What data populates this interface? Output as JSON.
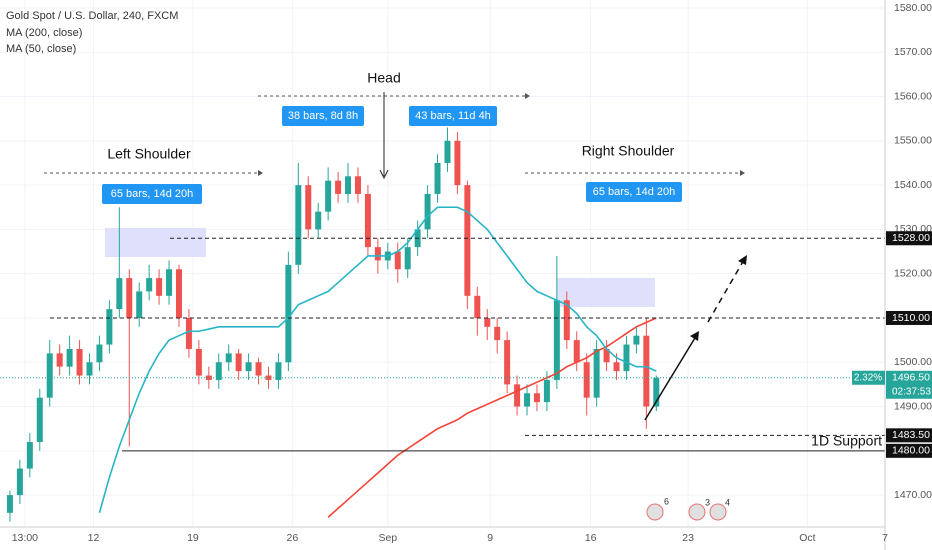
{
  "chart_data": {
    "type": "candlestick",
    "title": "Gold Spot / U.S. Dollar, 240, FXCM",
    "up_color": "#26a69a",
    "down_color": "#ef5350",
    "x": [
      0,
      1,
      2,
      3,
      4,
      5,
      6,
      7,
      8,
      9,
      10,
      11,
      12,
      13,
      14,
      15,
      16,
      17,
      18,
      19,
      20,
      21,
      22,
      23,
      24,
      25,
      26,
      27,
      28,
      29,
      30,
      31,
      32,
      33,
      34,
      35,
      36,
      37,
      38,
      39,
      40,
      41,
      42,
      43,
      44,
      45,
      46,
      47,
      48,
      49,
      50,
      51,
      52,
      53,
      54,
      55,
      56,
      57,
      58,
      59,
      60,
      61,
      62,
      63,
      64,
      65
    ],
    "open": [
      1466,
      1470,
      1476,
      1482,
      1492,
      1502,
      1499,
      1503,
      1497,
      1500,
      1504,
      1512,
      1519,
      1510,
      1516,
      1519,
      1515,
      1521,
      1510,
      1503,
      1497,
      1496,
      1500,
      1502,
      1498,
      1500,
      1497,
      1496,
      1500,
      1522,
      1540,
      1530,
      1534,
      1541,
      1538,
      1542,
      1538,
      1526,
      1523,
      1525,
      1521,
      1526,
      1530,
      1538,
      1545,
      1550,
      1540,
      1515,
      1510,
      1508,
      1505,
      1495,
      1490,
      1493,
      1491,
      1496,
      1514,
      1505,
      1500,
      1492,
      1503,
      1500,
      1498,
      1504,
      1506,
      1490
    ],
    "high": [
      1471,
      1478,
      1484,
      1494,
      1505,
      1504,
      1506,
      1505,
      1502,
      1506,
      1514,
      1535,
      1521,
      1518,
      1522,
      1521,
      1523,
      1522,
      1512,
      1505,
      1499,
      1502,
      1504,
      1503,
      1502,
      1501,
      1499,
      1502,
      1525,
      1545,
      1542,
      1536,
      1544,
      1543,
      1545,
      1544,
      1540,
      1528,
      1527,
      1527,
      1528,
      1532,
      1540,
      1547,
      1553,
      1552,
      1541,
      1517,
      1512,
      1510,
      1507,
      1497,
      1495,
      1495,
      1498,
      1524,
      1516,
      1507,
      1502,
      1505,
      1505,
      1502,
      1506,
      1508,
      1510,
      1497
    ],
    "low": [
      1464,
      1468,
      1474,
      1480,
      1490,
      1497,
      1497,
      1495,
      1495,
      1498,
      1502,
      1510,
      1481,
      1508,
      1514,
      1513,
      1513,
      1508,
      1501,
      1495,
      1494,
      1494,
      1498,
      1496,
      1496,
      1495,
      1494,
      1494,
      1498,
      1520,
      1528,
      1528,
      1532,
      1536,
      1536,
      1536,
      1524,
      1520,
      1521,
      1518,
      1519,
      1524,
      1528,
      1536,
      1543,
      1538,
      1512,
      1506,
      1505,
      1502,
      1493,
      1488,
      1488,
      1489,
      1489,
      1494,
      1503,
      1498,
      1488,
      1490,
      1498,
      1496,
      1496,
      1502,
      1485,
      1489
    ],
    "close": [
      1470,
      1476,
      1482,
      1492,
      1502,
      1499,
      1503,
      1497,
      1500,
      1504,
      1512,
      1519,
      1510,
      1516,
      1519,
      1515,
      1521,
      1510,
      1503,
      1497,
      1496,
      1500,
      1502,
      1498,
      1500,
      1497,
      1496,
      1500,
      1522,
      1540,
      1530,
      1534,
      1541,
      1538,
      1542,
      1538,
      1526,
      1523,
      1525,
      1521,
      1526,
      1530,
      1538,
      1545,
      1550,
      1540,
      1515,
      1510,
      1508,
      1505,
      1495,
      1490,
      1493,
      1491,
      1496,
      1514,
      1505,
      1500,
      1492,
      1503,
      1500,
      1498,
      1504,
      1506,
      1490,
      1496.5
    ],
    "series": [
      {
        "name": "MA (200, close)",
        "color": "#f44336",
        "values": [
          null,
          null,
          null,
          null,
          null,
          null,
          null,
          null,
          null,
          null,
          null,
          null,
          null,
          null,
          null,
          null,
          null,
          null,
          null,
          null,
          null,
          null,
          null,
          null,
          null,
          null,
          null,
          null,
          null,
          null,
          null,
          null,
          1465,
          1467,
          1469,
          1471,
          1473,
          1475,
          1477,
          1479,
          1480.5,
          1482,
          1483.5,
          1485,
          1486,
          1487,
          1488.5,
          1489.5,
          1490.5,
          1491.5,
          1492.5,
          1493.5,
          1494.5,
          1495.5,
          1496.5,
          1497.5,
          1499,
          1500,
          1501,
          1502.5,
          1503.5,
          1505,
          1506.5,
          1508,
          1509,
          1510
        ]
      },
      {
        "name": "MA (50, close)",
        "color": "#26b5c5",
        "values": [
          null,
          null,
          null,
          null,
          null,
          null,
          null,
          null,
          null,
          1466,
          1474,
          1481,
          1487,
          1493,
          1498,
          1502,
          1505,
          1506,
          1507,
          1507,
          1507.5,
          1508,
          1508,
          1508,
          1508,
          1508,
          1508,
          1508,
          1510,
          1513,
          1514,
          1515,
          1516,
          1518,
          1520,
          1522,
          1524,
          1524,
          1524,
          1525,
          1527,
          1530,
          1533,
          1535,
          1535,
          1535,
          1534,
          1532,
          1530,
          1527,
          1524,
          1521,
          1518,
          1516,
          1515,
          1514,
          1513,
          1511,
          1508,
          1506,
          1503,
          1501,
          1500,
          1499,
          1499,
          1498
        ]
      }
    ],
    "xlim": [
      -1,
      88
    ],
    "xticks": [
      {
        "value": 1.5,
        "label": "13:00"
      },
      {
        "value": 8.4,
        "label": "12"
      },
      {
        "value": 18.4,
        "label": "19"
      },
      {
        "value": 28.4,
        "label": "26"
      },
      {
        "value": 38,
        "label": "Sep"
      },
      {
        "value": 48.3,
        "label": "9"
      },
      {
        "value": 58.4,
        "label": "16"
      },
      {
        "value": 68.2,
        "label": "23"
      },
      {
        "value": 80.2,
        "label": "Oct"
      },
      {
        "value": 88,
        "label": "7"
      }
    ],
    "ylim": [
      1462.8,
      1581.8
    ],
    "yticks": [
      {
        "value": 1470,
        "label": "1470.00"
      },
      {
        "value": 1480,
        "label": "1480.00"
      },
      {
        "value": 1490,
        "label": "1490.00"
      },
      {
        "value": 1500,
        "label": "1500.00"
      },
      {
        "value": 1510,
        "label": "1510.00"
      },
      {
        "value": 1520,
        "label": "1520.00"
      },
      {
        "value": 1530,
        "label": "1530.00"
      },
      {
        "value": 1540,
        "label": "1540.00"
      },
      {
        "value": 1550,
        "label": "1550.00"
      },
      {
        "value": 1560,
        "label": "1560.00"
      },
      {
        "value": 1570,
        "label": "1570.00"
      },
      {
        "value": 1580,
        "label": "1580.00"
      }
    ],
    "grid": true,
    "levels": [
      {
        "value": 1528,
        "label": "1528.00"
      },
      {
        "value": 1510,
        "label": "1510.00"
      },
      {
        "value": 1483.5,
        "label": "1483.50"
      },
      {
        "value": 1480,
        "label": "1480.00"
      }
    ],
    "last_price": {
      "value": 1496.5,
      "label": "1496.50",
      "change": "2.32%",
      "countdown": "02:37:53"
    },
    "support_label": "1D Support",
    "annotations": [
      "Left Shoulder",
      "Head",
      "Right Shoulder"
    ],
    "bar_counts": [
      "65 bars, 14d 20h",
      "38 bars, 8d 8h",
      "43 bars, 11d 4h",
      "65 bars, 14d 20h"
    ],
    "events": [
      "6",
      "3",
      "4"
    ]
  }
}
